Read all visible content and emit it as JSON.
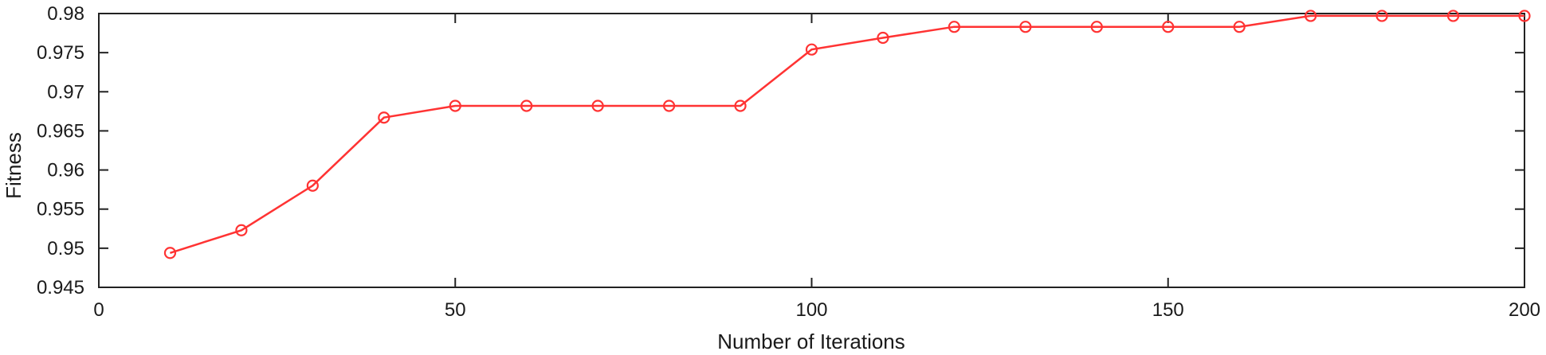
{
  "chart_data": {
    "type": "line",
    "title": "",
    "xlabel": "Number of Iterations",
    "ylabel": "Fitness",
    "xlim": [
      0,
      200
    ],
    "ylim": [
      0.945,
      0.98
    ],
    "x_ticks": [
      0,
      50,
      100,
      150,
      200
    ],
    "y_ticks": [
      0.945,
      0.95,
      0.955,
      0.96,
      0.965,
      0.97,
      0.975,
      0.98
    ],
    "x_tick_labels": [
      "0",
      "50",
      "100",
      "150",
      "200"
    ],
    "y_tick_labels": [
      "0.945",
      "0.95",
      "0.955",
      "0.96",
      "0.965",
      "0.97",
      "0.975",
      "0.98"
    ],
    "grid": false,
    "legend": "none",
    "series": [
      {
        "color": "#ff3333",
        "marker": "open-circle",
        "x": [
          10,
          20,
          30,
          40,
          50,
          60,
          70,
          80,
          90,
          100,
          110,
          120,
          130,
          140,
          150,
          160,
          170,
          180,
          190,
          200
        ],
        "y": [
          0.9494,
          0.9523,
          0.958,
          0.9667,
          0.9682,
          0.9682,
          0.9682,
          0.9682,
          0.9682,
          0.9754,
          0.9769,
          0.9783,
          0.9783,
          0.9783,
          0.9783,
          0.9783,
          0.9797,
          0.9797,
          0.9797,
          0.9797
        ]
      }
    ]
  }
}
